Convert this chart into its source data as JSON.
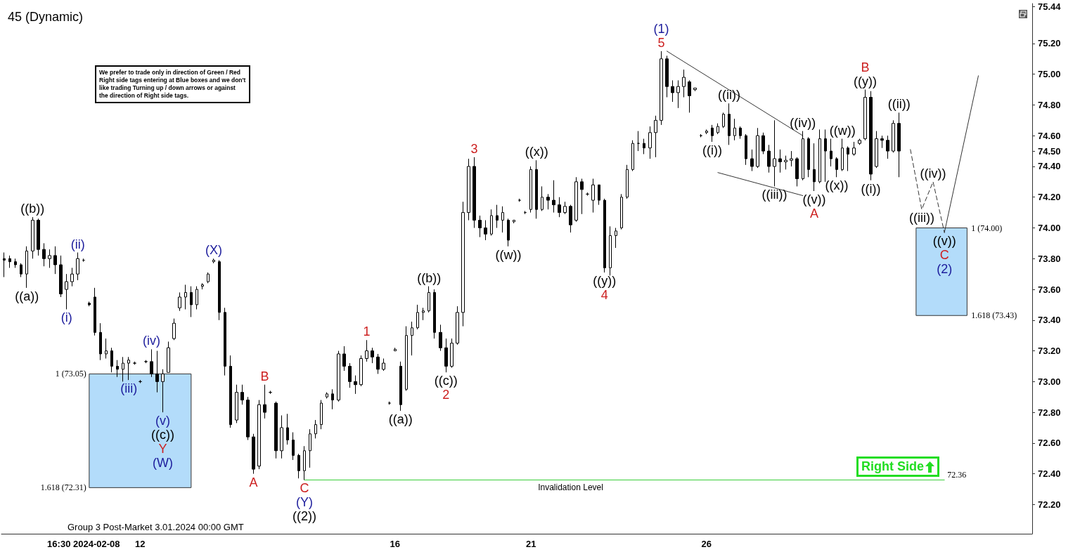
{
  "chart_data": {
    "type": "candlestick",
    "title": "45 (Dynamic)",
    "color": "#000000",
    "categories": [
      null,
      null,
      null,
      null,
      null,
      null,
      null,
      null,
      null,
      null,
      null,
      null,
      null,
      null,
      "16:30 2024-02-08",
      null,
      null,
      null,
      null,
      null,
      null,
      null,
      null,
      null,
      "12",
      null,
      null,
      null,
      null,
      null,
      null,
      null,
      null,
      null,
      null,
      null,
      null,
      null,
      null,
      null,
      null,
      null,
      null,
      null,
      null,
      null,
      null,
      null,
      null,
      null,
      null,
      null,
      null,
      null,
      null,
      null,
      null,
      null,
      null,
      null,
      null,
      null,
      null,
      null,
      null,
      null,
      null,
      null,
      null,
      "16",
      null,
      null,
      null,
      null,
      null,
      null,
      null,
      null,
      null,
      null,
      null,
      null,
      null,
      null,
      null,
      null,
      null,
      null,
      null,
      null,
      null,
      null,
      null,
      "21",
      null,
      null,
      null,
      null,
      null,
      null,
      null,
      null,
      null,
      null,
      null,
      null,
      null,
      null,
      null,
      null,
      null,
      null,
      null,
      null,
      null,
      null,
      null,
      null,
      null,
      null,
      null,
      null,
      null,
      null,
      "26",
      null,
      null,
      null,
      null,
      null,
      null,
      null,
      null,
      null,
      null,
      null,
      null,
      null,
      null,
      null,
      null,
      null,
      null,
      null,
      null,
      null,
      null,
      null,
      null,
      null,
      null,
      null,
      null,
      null,
      null,
      null,
      null,
      null,
      null,
      null,
      null,
      null,
      null,
      null,
      null,
      null,
      null,
      null,
      null,
      null,
      null,
      null,
      null,
      null,
      null,
      null,
      null,
      null,
      null,
      null,
      null,
      null
    ],
    "ohlc": [
      [
        73.8,
        73.84,
        73.68,
        73.79
      ],
      [
        73.8,
        73.82,
        73.74,
        73.78
      ],
      [
        73.78,
        73.8,
        73.74,
        73.76
      ],
      [
        73.76,
        73.77,
        73.68,
        73.7
      ],
      [
        73.7,
        73.88,
        73.61,
        73.85
      ],
      [
        73.85,
        74.07,
        73.8,
        74.05
      ],
      [
        74.05,
        74.06,
        73.82,
        73.86
      ],
      [
        73.86,
        73.9,
        73.75,
        73.8
      ],
      [
        73.8,
        73.86,
        73.74,
        73.82
      ],
      [
        73.82,
        73.88,
        73.7,
        73.76
      ],
      [
        73.76,
        73.82,
        73.55,
        73.57
      ],
      [
        73.6,
        73.7,
        73.47,
        73.65
      ],
      [
        73.65,
        73.74,
        73.62,
        73.7
      ],
      [
        73.7,
        73.84,
        73.66,
        73.8
      ],
      [
        73.79,
        73.8,
        73.78,
        73.79
      ],
      [
        73.51,
        73.52,
        73.49,
        73.5
      ],
      [
        73.55,
        73.61,
        73.3,
        73.32
      ],
      [
        73.32,
        73.38,
        73.14,
        73.18
      ],
      [
        73.18,
        73.28,
        73.15,
        73.2
      ],
      [
        73.2,
        73.22,
        73.06,
        73.1
      ],
      [
        73.1,
        73.14,
        73.03,
        73.08
      ],
      [
        73.08,
        73.16,
        73.0,
        73.12
      ],
      [
        73.12,
        73.16,
        73.01,
        73.14
      ],
      [
        73.12,
        73.13,
        73.11,
        73.12
      ],
      [
        73.0,
        73.01,
        72.99,
        73.0
      ],
      [
        73.13,
        73.14,
        73.12,
        73.13
      ],
      [
        73.13,
        73.21,
        73.03,
        73.05
      ],
      [
        73.05,
        73.2,
        72.93,
        73.0
      ],
      [
        73.0,
        73.08,
        72.8,
        73.05
      ],
      [
        73.06,
        73.26,
        73.06,
        73.22
      ],
      [
        73.28,
        73.41,
        73.27,
        73.38
      ],
      [
        73.48,
        73.58,
        73.46,
        73.55
      ],
      [
        73.55,
        73.63,
        73.47,
        73.58
      ],
      [
        73.58,
        73.62,
        73.42,
        73.5
      ],
      [
        73.5,
        73.62,
        73.47,
        73.6
      ],
      [
        73.62,
        73.64,
        73.6,
        73.63
      ],
      [
        73.65,
        73.71,
        73.64,
        73.7
      ],
      [
        73.78,
        73.8,
        73.77,
        73.79
      ],
      [
        73.78,
        73.79,
        73.4,
        73.45
      ],
      [
        73.45,
        73.48,
        73.04,
        73.1
      ],
      [
        73.1,
        73.17,
        72.7,
        72.72
      ],
      [
        72.75,
        72.98,
        72.73,
        72.93
      ],
      [
        72.93,
        72.98,
        72.85,
        72.88
      ],
      [
        72.88,
        72.9,
        72.62,
        72.64
      ],
      [
        72.64,
        72.66,
        72.4,
        72.43
      ],
      [
        72.45,
        72.88,
        72.43,
        72.85
      ],
      [
        72.85,
        72.98,
        72.76,
        72.8
      ],
      [
        72.93,
        72.94,
        72.92,
        72.93
      ],
      [
        72.86,
        72.87,
        72.5,
        72.55
      ],
      [
        72.55,
        72.78,
        72.5,
        72.7
      ],
      [
        72.7,
        72.79,
        72.59,
        72.62
      ],
      [
        72.62,
        72.67,
        72.49,
        72.52
      ],
      [
        72.52,
        72.53,
        72.37,
        72.42
      ],
      [
        72.42,
        72.58,
        72.36,
        72.55
      ],
      [
        72.55,
        72.69,
        72.44,
        72.66
      ],
      [
        72.66,
        72.75,
        72.63,
        72.72
      ],
      [
        72.72,
        72.88,
        72.69,
        72.86
      ],
      [
        72.9,
        72.93,
        72.89,
        72.92
      ],
      [
        72.92,
        72.95,
        72.82,
        72.88
      ],
      [
        72.88,
        73.2,
        72.87,
        73.18
      ],
      [
        73.18,
        73.23,
        73.07,
        73.1
      ],
      [
        73.1,
        73.12,
        72.96,
        73.0
      ],
      [
        73.0,
        73.04,
        72.92,
        72.98
      ],
      [
        72.98,
        73.17,
        72.97,
        73.15
      ],
      [
        73.15,
        73.27,
        73.13,
        73.2
      ],
      [
        73.2,
        73.22,
        73.12,
        73.16
      ],
      [
        73.16,
        73.18,
        73.05,
        73.08
      ],
      [
        73.08,
        73.15,
        73.07,
        73.12
      ],
      [
        72.86,
        72.87,
        72.85,
        72.86
      ],
      [
        73.2,
        73.22,
        73.2,
        73.21
      ],
      [
        73.1,
        73.13,
        72.81,
        72.85
      ],
      [
        72.95,
        73.36,
        72.94,
        73.3
      ],
      [
        73.3,
        73.39,
        73.17,
        73.35
      ],
      [
        73.35,
        73.5,
        73.34,
        73.45
      ],
      [
        73.45,
        73.48,
        73.4,
        73.46
      ],
      [
        73.46,
        73.62,
        73.45,
        73.58
      ],
      [
        73.58,
        73.6,
        73.28,
        73.32
      ],
      [
        73.32,
        73.37,
        73.2,
        73.22
      ],
      [
        73.22,
        73.28,
        73.06,
        73.1
      ],
      [
        73.1,
        73.28,
        73.09,
        73.25
      ],
      [
        73.25,
        73.49,
        73.24,
        73.45
      ],
      [
        73.45,
        74.17,
        73.36,
        74.1
      ],
      [
        74.1,
        74.45,
        74.05,
        74.4
      ],
      [
        74.4,
        74.46,
        74.0,
        74.05
      ],
      [
        74.05,
        74.08,
        73.94,
        74.0
      ],
      [
        74.0,
        74.05,
        73.92,
        73.96
      ],
      [
        73.96,
        74.12,
        73.95,
        74.08
      ],
      [
        74.08,
        74.15,
        74.0,
        74.05
      ],
      [
        74.05,
        74.14,
        73.97,
        74.1
      ],
      [
        74.05,
        74.06,
        73.88,
        73.92
      ],
      [
        74.04,
        74.05,
        74.03,
        74.05
      ],
      [
        74.18,
        74.19,
        74.17,
        74.18
      ],
      [
        74.1,
        74.11,
        74.09,
        74.1
      ],
      [
        74.12,
        74.4,
        74.1,
        74.38
      ],
      [
        74.38,
        74.44,
        74.06,
        74.12
      ],
      [
        74.12,
        74.27,
        74.11,
        74.2
      ],
      [
        74.2,
        74.22,
        74.12,
        74.18
      ],
      [
        74.18,
        74.31,
        74.1,
        74.15
      ],
      [
        74.15,
        74.2,
        74.07,
        74.1
      ],
      [
        74.1,
        74.17,
        74.09,
        74.14
      ],
      [
        74.14,
        74.15,
        73.97,
        74.02
      ],
      [
        74.05,
        74.33,
        74.04,
        74.3
      ],
      [
        74.3,
        74.32,
        74.09,
        74.25
      ],
      [
        74.22,
        74.23,
        74.21,
        74.22
      ],
      [
        74.18,
        74.32,
        74.1,
        74.28
      ],
      [
        74.28,
        74.28,
        74.15,
        74.18
      ],
      [
        74.18,
        74.19,
        73.71,
        73.74
      ],
      [
        73.74,
        74.01,
        73.69,
        73.95
      ],
      [
        73.95,
        74.0,
        73.87,
        73.98
      ],
      [
        74.0,
        74.22,
        73.99,
        74.2
      ],
      [
        74.2,
        74.41,
        74.19,
        74.38
      ],
      [
        74.38,
        74.57,
        74.37,
        74.55
      ],
      [
        74.55,
        74.63,
        74.5,
        74.55
      ],
      [
        74.55,
        74.58,
        74.48,
        74.52
      ],
      [
        74.52,
        74.66,
        74.45,
        74.62
      ],
      [
        74.62,
        74.73,
        74.46,
        74.7
      ],
      [
        74.7,
        75.15,
        74.67,
        75.1
      ],
      [
        75.1,
        75.12,
        74.85,
        74.92
      ],
      [
        74.92,
        74.96,
        74.82,
        74.88
      ],
      [
        74.88,
        74.96,
        74.78,
        74.92
      ],
      [
        74.92,
        75.03,
        74.85,
        74.98
      ],
      [
        74.95,
        74.96,
        74.75,
        74.86
      ],
      [
        74.9,
        74.91,
        74.89,
        74.91
      ],
      [
        74.6,
        74.61,
        74.59,
        74.6
      ],
      [
        74.62,
        74.64,
        74.61,
        74.63
      ],
      [
        74.65,
        74.67,
        74.56,
        74.6
      ],
      [
        74.62,
        74.68,
        74.61,
        74.66
      ],
      [
        74.66,
        74.75,
        74.65,
        74.74
      ],
      [
        74.74,
        74.81,
        74.54,
        74.6
      ],
      [
        74.6,
        74.71,
        74.57,
        74.65
      ],
      [
        74.65,
        74.66,
        74.58,
        74.6
      ],
      [
        74.6,
        74.61,
        74.41,
        74.45
      ],
      [
        74.45,
        74.51,
        74.37,
        74.4
      ],
      [
        74.4,
        74.65,
        74.39,
        74.6
      ],
      [
        74.6,
        74.62,
        74.48,
        74.5
      ],
      [
        74.5,
        74.54,
        74.36,
        74.4
      ],
      [
        74.4,
        74.7,
        74.27,
        74.45
      ],
      [
        74.45,
        74.51,
        74.36,
        74.43
      ],
      [
        74.43,
        74.47,
        74.38,
        74.44
      ],
      [
        74.44,
        74.5,
        74.4,
        74.45
      ],
      [
        74.45,
        74.46,
        74.27,
        74.32
      ],
      [
        74.32,
        74.63,
        74.31,
        74.58
      ],
      [
        74.58,
        74.59,
        74.33,
        74.38
      ],
      [
        74.38,
        74.55,
        74.24,
        74.3
      ],
      [
        74.3,
        74.64,
        74.29,
        74.58
      ],
      [
        74.58,
        74.64,
        74.3,
        74.5
      ],
      [
        74.5,
        74.58,
        74.4,
        74.45
      ],
      [
        74.45,
        74.46,
        74.33,
        74.38
      ],
      [
        74.38,
        74.58,
        74.37,
        74.52
      ],
      [
        74.52,
        74.53,
        74.37,
        74.48
      ],
      [
        74.48,
        74.56,
        74.47,
        74.52
      ],
      [
        74.55,
        74.58,
        74.54,
        74.57
      ],
      [
        74.58,
        74.9,
        74.57,
        74.85
      ],
      [
        74.85,
        74.89,
        74.31,
        74.35
      ],
      [
        74.4,
        74.63,
        74.39,
        74.58
      ],
      [
        74.58,
        74.6,
        74.52,
        74.57
      ],
      [
        74.57,
        74.6,
        74.45,
        74.5
      ],
      [
        74.5,
        74.7,
        74.49,
        74.68
      ],
      [
        74.68,
        74.75,
        74.33,
        74.5
      ],
      null,
      null,
      null,
      null,
      null,
      null,
      null,
      null,
      null,
      null,
      null,
      null,
      null,
      null,
      null,
      null,
      null,
      null,
      null,
      null,
      null,
      null,
      null
    ],
    "series": [
      {
        "type": "line",
        "color": "#33cc33",
        "values": [
          null,
          null,
          null,
          null,
          null,
          null,
          null,
          null,
          null,
          null,
          null,
          null,
          null,
          null,
          null,
          null,
          null,
          null,
          null,
          null,
          null,
          null,
          null,
          null,
          null,
          null,
          null,
          null,
          null,
          null,
          null,
          null,
          null,
          null,
          null,
          null,
          null,
          null,
          null,
          null,
          null,
          null,
          null,
          null,
          null,
          null,
          null,
          null,
          null,
          null,
          null,
          null,
          null,
          72.36,
          null,
          null,
          null,
          null,
          null,
          null,
          null,
          null,
          null,
          null,
          null,
          null,
          null,
          null,
          null,
          null,
          null,
          null,
          null,
          null,
          null,
          null,
          null,
          null,
          null,
          null,
          null,
          null,
          null,
          null,
          null,
          null,
          null,
          null,
          null,
          null,
          null,
          null,
          null,
          null,
          null,
          null,
          null,
          null,
          null,
          null,
          null,
          null,
          null,
          null,
          null,
          null,
          null,
          null,
          null,
          null,
          null,
          null,
          null,
          null,
          null,
          null,
          null,
          null,
          null,
          null,
          null,
          null,
          null,
          null,
          null,
          null,
          null,
          null,
          null,
          null,
          null,
          null,
          null,
          null,
          null,
          null,
          null,
          null,
          null,
          null,
          null,
          null,
          null,
          null,
          null,
          null,
          null,
          null,
          null,
          null,
          null,
          null,
          null,
          null,
          null,
          null,
          null,
          null,
          null,
          null,
          null,
          null,
          null,
          null,
          null,
          null,
          72.36,
          null,
          null,
          null,
          null,
          null,
          null,
          null,
          null,
          null,
          null,
          null,
          null,
          null,
          null,
          null
        ]
      },
      {
        "type": "line",
        "color": "#333333",
        "values": [
          null,
          null,
          null,
          null,
          null,
          null,
          null,
          null,
          null,
          null,
          null,
          null,
          null,
          null,
          null,
          null,
          null,
          null,
          null,
          null,
          null,
          null,
          null,
          null,
          null,
          null,
          null,
          null,
          null,
          null,
          null,
          null,
          null,
          null,
          null,
          null,
          null,
          null,
          null,
          null,
          null,
          null,
          null,
          null,
          null,
          null,
          null,
          null,
          null,
          null,
          null,
          null,
          null,
          null,
          null,
          null,
          null,
          null,
          null,
          null,
          null,
          null,
          null,
          null,
          null,
          null,
          null,
          null,
          null,
          null,
          null,
          null,
          null,
          null,
          null,
          null,
          null,
          null,
          null,
          null,
          null,
          null,
          null,
          null,
          null,
          null,
          null,
          null,
          null,
          null,
          null,
          null,
          null,
          null,
          null,
          null,
          null,
          null,
          null,
          null,
          null,
          null,
          null,
          null,
          null,
          null,
          null,
          null,
          null,
          null,
          null,
          null,
          null,
          null,
          null,
          null,
          null,
          75.15,
          null,
          null,
          null,
          null,
          null,
          null,
          null,
          null,
          null,
          null,
          null,
          null,
          null,
          null,
          null,
          null,
          null,
          null,
          null,
          null,
          null,
          null,
          null,
          74.6,
          null,
          null,
          null,
          null,
          null,
          null,
          null,
          null,
          null,
          null,
          null,
          null,
          null,
          null,
          null,
          null,
          null,
          null,
          null,
          null,
          null,
          null,
          null,
          null,
          null,
          null,
          null,
          null,
          null,
          null,
          null,
          null,
          null,
          null,
          null,
          null,
          null,
          null,
          null,
          null
        ]
      },
      {
        "type": "line",
        "color": "#333333",
        "values": [
          null,
          null,
          null,
          null,
          null,
          null,
          null,
          null,
          null,
          null,
          null,
          null,
          null,
          null,
          null,
          null,
          null,
          null,
          null,
          null,
          null,
          null,
          null,
          null,
          null,
          null,
          null,
          null,
          null,
          null,
          null,
          null,
          null,
          null,
          null,
          null,
          null,
          null,
          null,
          null,
          null,
          null,
          null,
          null,
          null,
          null,
          null,
          null,
          null,
          null,
          null,
          null,
          null,
          null,
          null,
          null,
          null,
          null,
          null,
          null,
          null,
          null,
          null,
          null,
          null,
          null,
          null,
          null,
          null,
          null,
          null,
          null,
          null,
          null,
          null,
          null,
          null,
          null,
          null,
          null,
          null,
          null,
          null,
          null,
          null,
          null,
          null,
          null,
          null,
          null,
          null,
          null,
          null,
          null,
          null,
          null,
          null,
          null,
          null,
          null,
          null,
          null,
          null,
          null,
          null,
          null,
          null,
          null,
          null,
          null,
          null,
          null,
          null,
          null,
          null,
          null,
          null,
          null,
          null,
          null,
          null,
          null,
          null,
          null,
          null,
          null,
          74.36,
          null,
          null,
          null,
          null,
          null,
          null,
          null,
          null,
          null,
          null,
          null,
          null,
          null,
          null,
          74.21,
          null,
          null,
          null,
          null,
          null,
          null,
          null,
          null,
          null,
          null,
          null,
          null,
          null,
          null,
          null,
          null,
          null,
          null,
          null,
          null,
          null,
          null,
          null,
          null,
          null,
          null,
          null,
          null,
          null,
          null,
          null,
          null,
          null,
          null,
          null,
          null,
          null,
          null,
          null,
          null
        ]
      },
      {
        "type": "line",
        "color": "#333333",
        "line_style": "dashed",
        "values": [
          null,
          null,
          null,
          null,
          null,
          null,
          null,
          null,
          null,
          null,
          null,
          null,
          null,
          null,
          null,
          null,
          null,
          null,
          null,
          null,
          null,
          null,
          null,
          null,
          null,
          null,
          null,
          null,
          null,
          null,
          null,
          null,
          null,
          null,
          null,
          null,
          null,
          null,
          null,
          null,
          null,
          null,
          null,
          null,
          null,
          null,
          null,
          null,
          null,
          null,
          null,
          null,
          null,
          null,
          null,
          null,
          null,
          null,
          null,
          null,
          null,
          null,
          null,
          null,
          null,
          null,
          null,
          null,
          null,
          null,
          null,
          null,
          null,
          null,
          null,
          null,
          null,
          null,
          null,
          null,
          null,
          null,
          null,
          null,
          null,
          null,
          null,
          null,
          null,
          null,
          null,
          null,
          null,
          null,
          null,
          null,
          null,
          null,
          null,
          null,
          null,
          null,
          null,
          null,
          null,
          null,
          null,
          null,
          null,
          null,
          null,
          null,
          null,
          null,
          null,
          null,
          null,
          null,
          null,
          null,
          null,
          null,
          null,
          null,
          null,
          null,
          null,
          null,
          null,
          null,
          null,
          null,
          null,
          null,
          null,
          null,
          null,
          null,
          null,
          null,
          null,
          null,
          null,
          null,
          null,
          null,
          null,
          null,
          null,
          null,
          null,
          null,
          null,
          null,
          null,
          null,
          null,
          null,
          null,
          null,
          74.51,
          null,
          74.12,
          null,
          74.3,
          null,
          73.97,
          null,
          null,
          null,
          null,
          null,
          null,
          null,
          null,
          null,
          null,
          null,
          null,
          null,
          null,
          null
        ]
      },
      {
        "type": "line",
        "color": "#333333",
        "values": [
          null,
          null,
          null,
          null,
          null,
          null,
          null,
          null,
          null,
          null,
          null,
          null,
          null,
          null,
          null,
          null,
          null,
          null,
          null,
          null,
          null,
          null,
          null,
          null,
          null,
          null,
          null,
          null,
          null,
          null,
          null,
          null,
          null,
          null,
          null,
          null,
          null,
          null,
          null,
          null,
          null,
          null,
          null,
          null,
          null,
          null,
          null,
          null,
          null,
          null,
          null,
          null,
          null,
          null,
          null,
          null,
          null,
          null,
          null,
          null,
          null,
          null,
          null,
          null,
          null,
          null,
          null,
          null,
          null,
          null,
          null,
          null,
          null,
          null,
          null,
          null,
          null,
          null,
          null,
          null,
          null,
          null,
          null,
          null,
          null,
          null,
          null,
          null,
          null,
          null,
          null,
          null,
          null,
          null,
          null,
          null,
          null,
          null,
          null,
          null,
          null,
          null,
          null,
          null,
          null,
          null,
          null,
          null,
          null,
          null,
          null,
          null,
          null,
          null,
          null,
          null,
          null,
          null,
          null,
          null,
          null,
          null,
          null,
          null,
          null,
          null,
          null,
          null,
          null,
          null,
          null,
          null,
          null,
          null,
          null,
          null,
          null,
          null,
          null,
          null,
          null,
          null,
          null,
          null,
          null,
          null,
          null,
          null,
          null,
          null,
          null,
          null,
          null,
          null,
          null,
          null,
          null,
          null,
          null,
          null,
          null,
          null,
          null,
          null,
          null,
          null,
          73.97,
          null,
          null,
          null,
          null,
          null,
          74.99,
          null,
          null,
          null,
          null,
          null,
          null,
          null,
          null,
          null
        ]
      }
    ],
    "bands": [
      {
        "axis": "y",
        "from": 72.31,
        "to": 73.05,
        "color": "#b3dcfa"
      },
      {
        "axis": "y",
        "from": 73.43,
        "to": 74.0,
        "color": "#b3dcfa"
      }
    ],
    "ylim": [
      72.01,
      75.46
    ],
    "yticks": [
      {
        "value": 72.2,
        "label": "72.20"
      },
      {
        "value": 72.4,
        "label": "72.40"
      },
      {
        "value": 72.6,
        "label": "72.60"
      },
      {
        "value": 72.8,
        "label": "72.80"
      },
      {
        "value": 73.0,
        "label": "73.00"
      },
      {
        "value": 73.2,
        "label": "73.20"
      },
      {
        "value": 73.4,
        "label": "73.40"
      },
      {
        "value": 73.6,
        "label": "73.60"
      },
      {
        "value": 73.8,
        "label": "73.80"
      },
      {
        "value": 74.0,
        "label": "74.00"
      },
      {
        "value": 74.2,
        "label": "74.20"
      },
      {
        "value": 74.4,
        "label": "74.40"
      },
      {
        "value": 74.5,
        "label": "74.50"
      },
      {
        "value": 74.6,
        "label": "74.60"
      },
      {
        "value": 74.8,
        "label": "74.80"
      },
      {
        "value": 75.0,
        "label": "75.00"
      },
      {
        "value": 75.2,
        "label": "75.20"
      },
      {
        "value": 75.44,
        "label": "75.44"
      }
    ],
    "annotations": [
      {
        "text": "((b))",
        "y": 74.07
      },
      {
        "text": "((a))",
        "y": 73.61
      },
      {
        "text": "(ii)",
        "y": 73.84
      },
      {
        "text": "(i)",
        "y": 73.47
      },
      {
        "text": "(iii)",
        "y": 73.01
      },
      {
        "text": "(iv)",
        "y": 73.21
      },
      {
        "text": "(v)",
        "y": 72.8
      },
      {
        "text": "((c))",
        "y": 72.8
      },
      {
        "text": "Y",
        "y": 72.8
      },
      "(W)",
      {
        "text": "(X)",
        "y": 73.8
      },
      {
        "text": "A",
        "y": 72.4
      },
      {
        "text": "B",
        "y": 72.98
      },
      {
        "text": "C",
        "y": 72.36
      },
      {
        "text": "(Y)",
        "y": 72.36
      },
      {
        "text": "((2))",
        "y": 72.36
      },
      {
        "text": "1",
        "y": 73.27
      },
      {
        "text": "((a))",
        "y": 72.81
      },
      {
        "text": "((b))",
        "y": 73.62
      },
      {
        "text": "((c))",
        "y": 73.06
      },
      {
        "text": "2",
        "y": 73.06
      },
      {
        "text": "3",
        "y": 74.46
      },
      {
        "text": "((x))",
        "y": 74.44
      },
      {
        "text": "((w))",
        "y": 73.88
      },
      {
        "text": "((y))",
        "y": 73.71
      },
      {
        "text": "4",
        "y": 73.71
      },
      {
        "text": "(1)",
        "y": 75.15
      },
      {
        "text": "5",
        "y": 75.15
      },
      {
        "text": "((ii))",
        "y": 74.81
      },
      {
        "text": "((i))",
        "y": 74.56
      },
      {
        "text": "((iii))",
        "y": 74.27
      },
      {
        "text": "((iv))",
        "y": 74.63
      },
      {
        "text": "((w))",
        "y": 74.58
      },
      {
        "text": "((v))",
        "y": 74.24
      },
      {
        "text": "A",
        "y": 74.24
      },
      {
        "text": "((x))",
        "y": 74.33
      },
      {
        "text": "B",
        "y": 74.9
      },
      {
        "text": "((y))",
        "y": 74.9
      },
      {
        "text": "((i))",
        "y": 74.31
      },
      {
        "text": "((ii))",
        "y": 74.75
      },
      {
        "text": "((iii))",
        "y": 74.12
      },
      {
        "text": "((iv))",
        "y": 74.3
      },
      {
        "text": "((v))",
        "y": 73.97
      },
      {
        "text": "C",
        "y": 73.97
      },
      {
        "text": "(2)",
        "y": 73.97
      },
      "1 (73.05)",
      "1.618 (72.31)",
      "1 (74.00)",
      "1.618 (73.43)",
      "72.36",
      {
        "text": "Invalidation Level",
        "y": 72.36
      },
      "We prefer to trade only in direction of Green / Red Right side tags entering at Blue boxes and we don't like trading Turning up / down arrows or against the direction of Right side tags.",
      "Group 3 Post-Market 3.01.2024 00:00 GMT",
      "Right Side"
    ]
  }
}
